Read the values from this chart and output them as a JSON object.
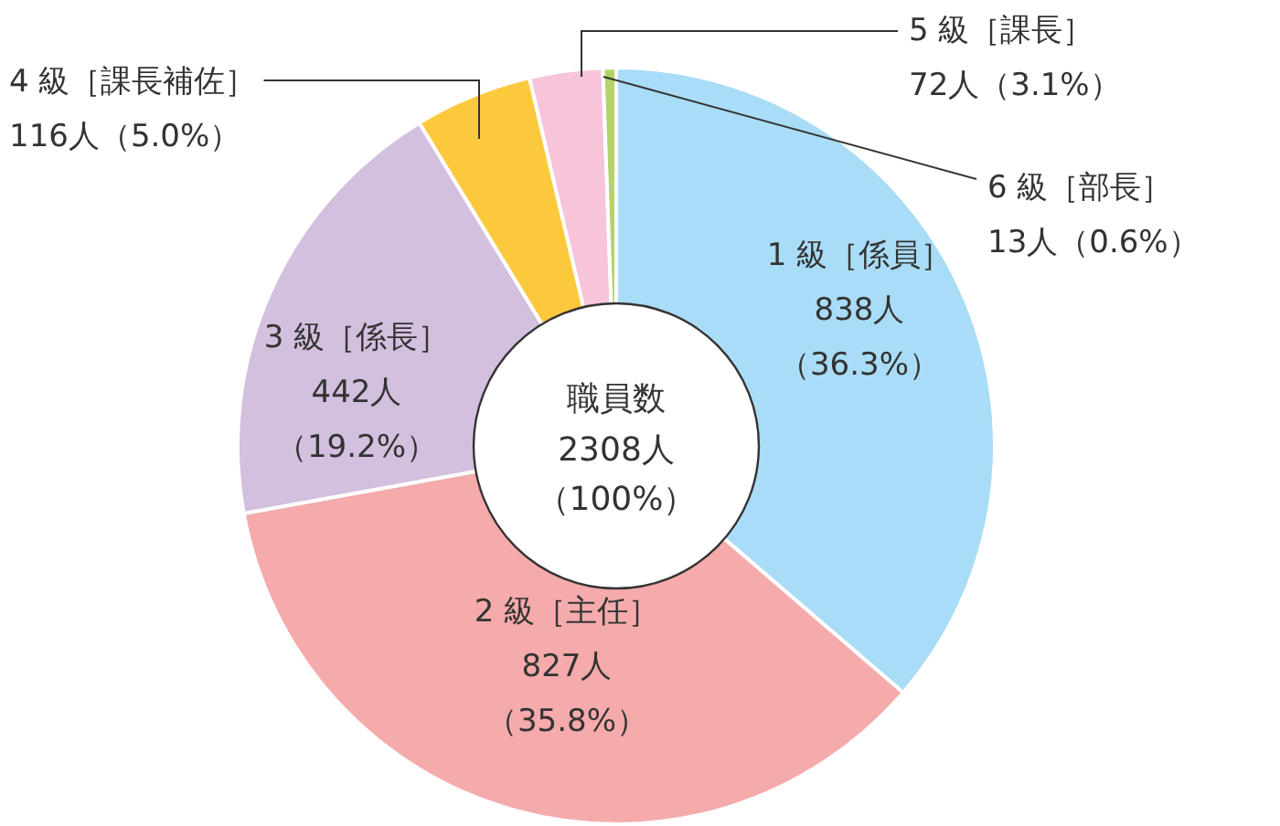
{
  "chart_data": {
    "type": "donut",
    "title": "職員数",
    "annotations": [
      "2308人",
      "（100%）"
    ],
    "categories": [
      "1 級［係員］",
      "2 級［主任］",
      "3 級［係長］",
      "4 級［課長補佐］",
      "5 級［課長］",
      "6 級［部長］"
    ],
    "values": [
      838,
      827,
      442,
      116,
      72,
      13
    ],
    "value_labels": [
      "838人（36.3%）",
      "827人（35.8%）",
      "442人（19.2%）",
      "116人（5.0%）",
      "72人（3.1%）",
      "13人（0.6%）"
    ],
    "colors": [
      "#a9dcf6",
      "#f5aaab",
      "#d3bfde",
      "#fcc93d",
      "#f7c4da",
      "#b3d36b"
    ]
  }
}
